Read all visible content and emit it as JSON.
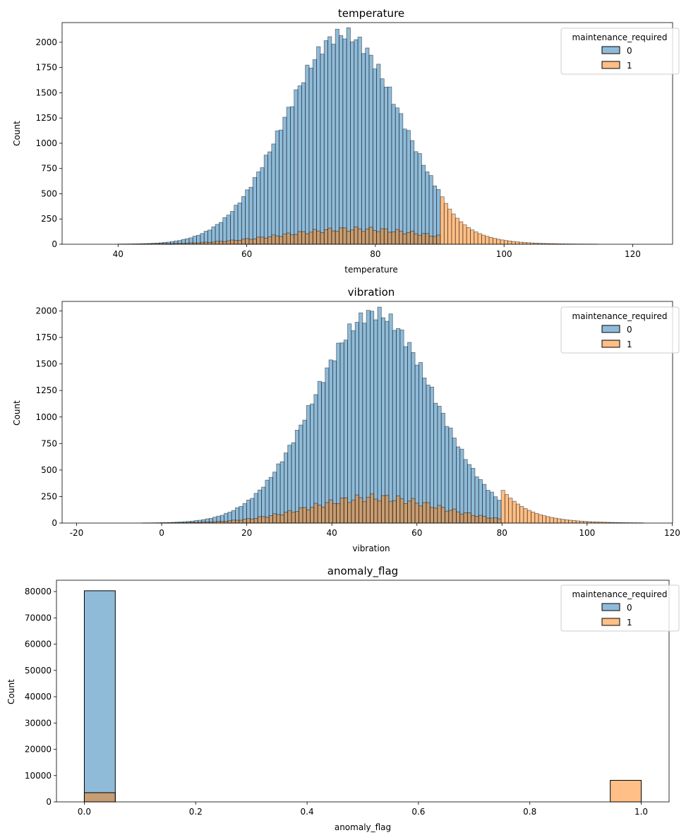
{
  "legend": {
    "title": "maintenance_required",
    "entries": [
      "0",
      "1"
    ]
  },
  "colors": {
    "class_0": "#1f77b4",
    "class_1": "#ff7f0e",
    "edge": "#000000"
  },
  "chart_data": [
    {
      "type": "histogram",
      "title": "temperature",
      "xlabel": "temperature",
      "ylabel": "Count",
      "xlim": [
        31.3,
        126.2
      ],
      "ylim": [
        0,
        2195
      ],
      "xticks": [
        40,
        60,
        80,
        100,
        120
      ],
      "yticks": [
        0,
        250,
        500,
        750,
        1000,
        1250,
        1500,
        1750,
        2000
      ],
      "legend_position": "top-right",
      "bins": {
        "start": 35.3,
        "width": 0.583,
        "count": 148
      },
      "series": [
        {
          "name": "0",
          "range": [
            35.3,
            90.0
          ],
          "center": 75.0,
          "sd": 9.0,
          "peak": 2080
        },
        {
          "name": "1",
          "range": [
            35.3,
            122.0
          ],
          "center": 77.0,
          "sd": 11.5,
          "peak": 150,
          "tail_start": 90.0,
          "tail_peak": 520,
          "tail_decay": 3.9
        }
      ]
    },
    {
      "type": "histogram",
      "title": "vibration",
      "xlabel": "vibration",
      "ylabel": "Count",
      "xlim": [
        -23.4,
        120.1
      ],
      "ylim": [
        0,
        2090
      ],
      "xticks": [
        -20,
        0,
        20,
        40,
        60,
        80,
        100,
        120
      ],
      "yticks": [
        0,
        250,
        500,
        750,
        1000,
        1250,
        1500,
        1750,
        2000
      ],
      "legend_position": "top-right",
      "bins": {
        "start": -17.0,
        "width": 0.88,
        "count": 149
      },
      "series": [
        {
          "name": "0",
          "range": [
            -17.0,
            80.0
          ],
          "center": 50.0,
          "sd": 14.0,
          "peak": 1980
        },
        {
          "name": "1",
          "range": [
            -17.0,
            113.5
          ],
          "center": 50.0,
          "sd": 15.5,
          "peak": 240,
          "tail_start": 80.0,
          "tail_peak": 320,
          "tail_decay": 6.5
        }
      ]
    },
    {
      "type": "histogram",
      "title": "anomaly_flag",
      "xlabel": "anomaly_flag",
      "ylabel": "Count",
      "xlim": [
        -0.05,
        1.05
      ],
      "ylim": [
        0,
        84300
      ],
      "xticks": [
        0.0,
        0.2,
        0.4,
        0.6,
        0.8,
        1.0
      ],
      "yticks": [
        0,
        10000,
        20000,
        30000,
        40000,
        50000,
        60000,
        70000,
        80000
      ],
      "legend_position": "top-right",
      "bars": [
        {
          "series": "0",
          "x0": 0.0,
          "x1": 0.0556,
          "value": 80300
        },
        {
          "series": "1",
          "x0": 0.0,
          "x1": 0.0556,
          "value": 3500
        },
        {
          "series": "1",
          "x0": 0.9444,
          "x1": 1.0,
          "value": 8200
        }
      ]
    }
  ]
}
